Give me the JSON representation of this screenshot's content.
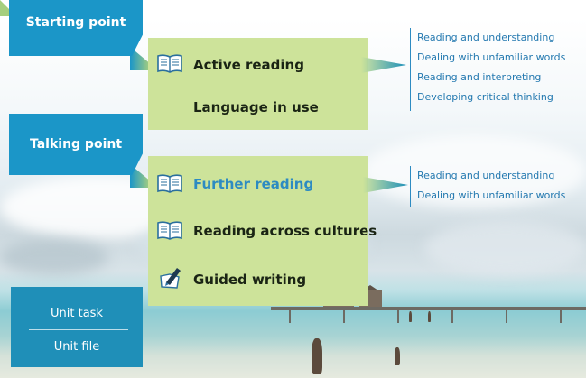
{
  "banners": {
    "starting_point": "Starting point",
    "talking_point": "Talking point"
  },
  "panel_top": {
    "items": [
      {
        "label": "Active reading",
        "icon": "book-icon"
      },
      {
        "label": "Language in use",
        "icon": null
      }
    ]
  },
  "panel_bottom": {
    "items": [
      {
        "label": "Further reading",
        "icon": "book-icon"
      },
      {
        "label": "Reading across cultures",
        "icon": "book-icon"
      },
      {
        "label": "Guided writing",
        "icon": "pen-icon"
      }
    ]
  },
  "active_reading_subitems": [
    "Reading and understanding",
    "Dealing with unfamiliar words",
    "Reading and interpreting",
    "Developing critical thinking"
  ],
  "further_reading_subitems": [
    "Reading and understanding",
    "Dealing with unfamiliar words"
  ],
  "unit_box": {
    "task": "Unit task",
    "file": "Unit file"
  },
  "colors": {
    "banner_blue": "#1b96c8",
    "panel_green": "#cde39a",
    "accent_text": "#2d8bc2"
  }
}
